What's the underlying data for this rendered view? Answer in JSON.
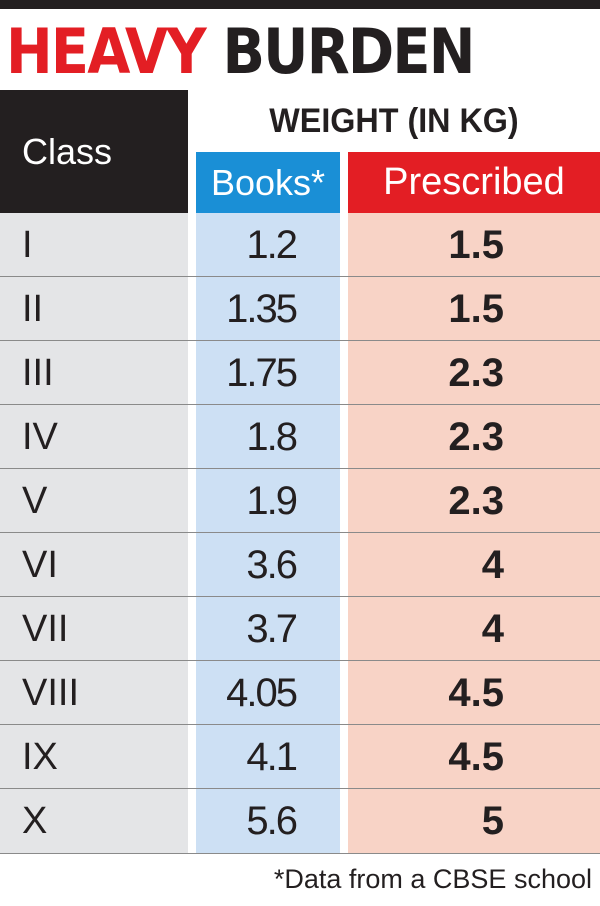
{
  "title": {
    "word1": "HEAVY",
    "word2": "BURDEN"
  },
  "chart_data": {
    "type": "table",
    "title": "HEAVY BURDEN",
    "columns": [
      "Class",
      "Books*",
      "Prescribed"
    ],
    "group_header": "WEIGHT (IN KG)",
    "rows": [
      {
        "class": "I",
        "books": "1.2",
        "prescribed": "1.5"
      },
      {
        "class": "II",
        "books": "1.35",
        "prescribed": "1.5"
      },
      {
        "class": "III",
        "books": "1.75",
        "prescribed": "2.3"
      },
      {
        "class": "IV",
        "books": "1.8",
        "prescribed": "2.3"
      },
      {
        "class": "V",
        "books": "1.9",
        "prescribed": "2.3"
      },
      {
        "class": "VI",
        "books": "3.6",
        "prescribed": "4"
      },
      {
        "class": "VII",
        "books": "3.7",
        "prescribed": "4"
      },
      {
        "class": "VIII",
        "books": "4.05",
        "prescribed": "4.5"
      },
      {
        "class": "IX",
        "books": "4.1",
        "prescribed": "4.5"
      },
      {
        "class": "X",
        "books": "5.6",
        "prescribed": "5"
      }
    ],
    "footnote": "*Data from a CBSE school"
  },
  "colors": {
    "title_red": "#e31e24",
    "title_dark": "#231f20",
    "books_header": "#1a8fd6",
    "prescribed_header": "#e31e24",
    "class_column": "#e4e5e7",
    "books_column": "#cde0f4",
    "prescribed_column": "#f8d3c6"
  }
}
